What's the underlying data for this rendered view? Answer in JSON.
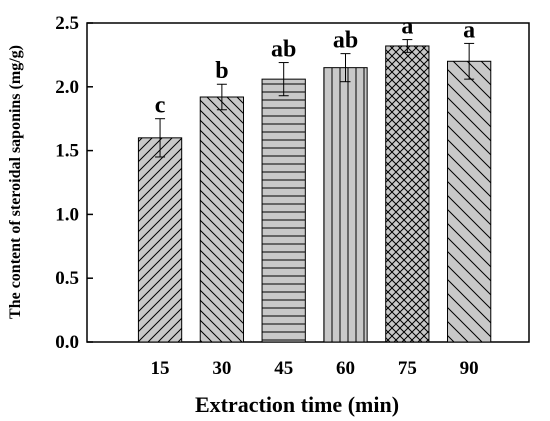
{
  "chart_data": {
    "type": "bar",
    "categories": [
      "15",
      "30",
      "45",
      "60",
      "75",
      "90"
    ],
    "values": [
      1.6,
      1.92,
      2.06,
      2.15,
      2.32,
      2.2
    ],
    "errors": [
      0.15,
      0.1,
      0.13,
      0.11,
      0.05,
      0.14
    ],
    "significance_letters": [
      "c",
      "b",
      "ab",
      "ab",
      "a",
      "a"
    ],
    "patterns": [
      "diag-forward",
      "diag-back",
      "horizontal",
      "vertical",
      "crosshatch",
      "diag-back-wide"
    ],
    "xlabel": "Extraction time (min)",
    "ylabel": "The content of steroidal saponins (mg/g)",
    "ylim": [
      0,
      2.5
    ],
    "yticks": [
      "0.0",
      "0.5",
      "1.0",
      "1.5",
      "2.0",
      "2.5"
    ],
    "grid": false,
    "bar_fill": "#c8c8c8",
    "bar_stroke": "#000000"
  }
}
